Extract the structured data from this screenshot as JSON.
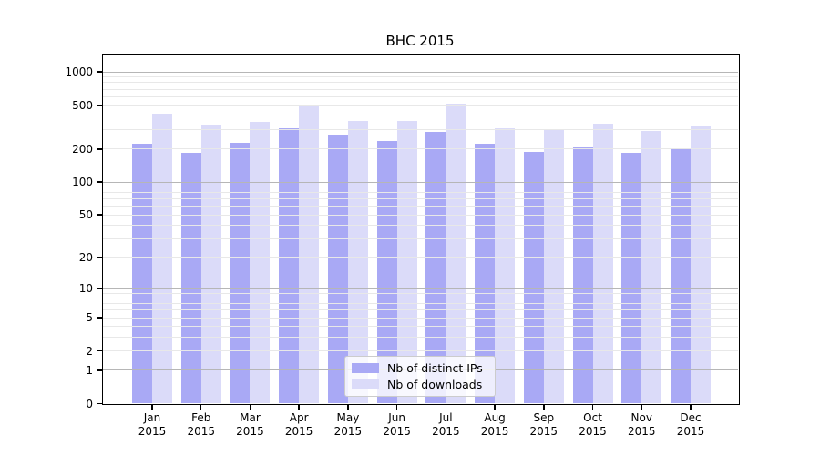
{
  "title": "BHC 2015",
  "chart_data": {
    "type": "bar",
    "title": "BHC 2015",
    "categories": [
      "Jan 2015",
      "Feb 2015",
      "Mar 2015",
      "Apr 2015",
      "May 2015",
      "Jun 2015",
      "Jul 2015",
      "Aug 2015",
      "Sep 2015",
      "Oct 2015",
      "Nov 2015",
      "Dec 2015"
    ],
    "series": [
      {
        "name": "Nb of distinct IPs",
        "color": "#a9a9f5",
        "values": [
          222,
          185,
          230,
          310,
          270,
          237,
          287,
          223,
          190,
          206,
          184,
          202
        ]
      },
      {
        "name": "Nb of downloads",
        "color": "#dbdbf9",
        "values": [
          418,
          336,
          351,
          501,
          363,
          359,
          518,
          310,
          306,
          341,
          291,
          323
        ]
      }
    ],
    "xlabel": "",
    "ylabel": "",
    "yscale": "log1p",
    "ylim": [
      0,
      1450
    ],
    "yticks": [
      0,
      1,
      2,
      5,
      10,
      20,
      50,
      100,
      200,
      500,
      1000
    ],
    "grid": true,
    "legend_position": "lower center"
  }
}
